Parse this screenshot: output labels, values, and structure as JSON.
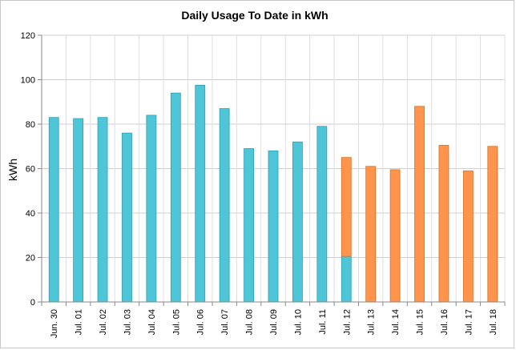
{
  "chart_data": {
    "type": "bar",
    "title": "Daily Usage To Date in kWh",
    "xlabel": "",
    "ylabel": "kWh",
    "ylim": [
      0,
      120
    ],
    "yticks": [
      0,
      20,
      40,
      60,
      80,
      100,
      120
    ],
    "grid": true,
    "legend": "none",
    "categories": [
      "Jun. 30",
      "Jul. 01",
      "Jul. 02",
      "Jul. 03",
      "Jul. 04",
      "Jul. 05",
      "Jul. 06",
      "Jul. 07",
      "Jul. 08",
      "Jul. 09",
      "Jul. 10",
      "Jul. 11",
      "Jul. 12",
      "Jul. 13",
      "Jul. 14",
      "Jul. 15",
      "Jul. 16",
      "Jul. 17",
      "Jul. 18"
    ],
    "series": [
      {
        "color": "#4fc6d8",
        "stroke": "#2a9fb3",
        "values": [
          83,
          82.5,
          83,
          76,
          84,
          94,
          97.5,
          87,
          69,
          68,
          72,
          79,
          20.5,
          0,
          0,
          0,
          0,
          0,
          0
        ]
      },
      {
        "color": "#ff944d",
        "stroke": "#d9702a",
        "values": [
          0,
          0,
          0,
          0,
          0,
          0,
          0,
          0,
          0,
          0,
          0,
          0,
          44.5,
          61,
          59.5,
          88,
          70.5,
          59,
          70
        ]
      }
    ],
    "totals": [
      83,
      82.5,
      83,
      76,
      84,
      94,
      97.5,
      87,
      69,
      68,
      72,
      79,
      65,
      61,
      59.5,
      88,
      70.5,
      59,
      70
    ]
  }
}
